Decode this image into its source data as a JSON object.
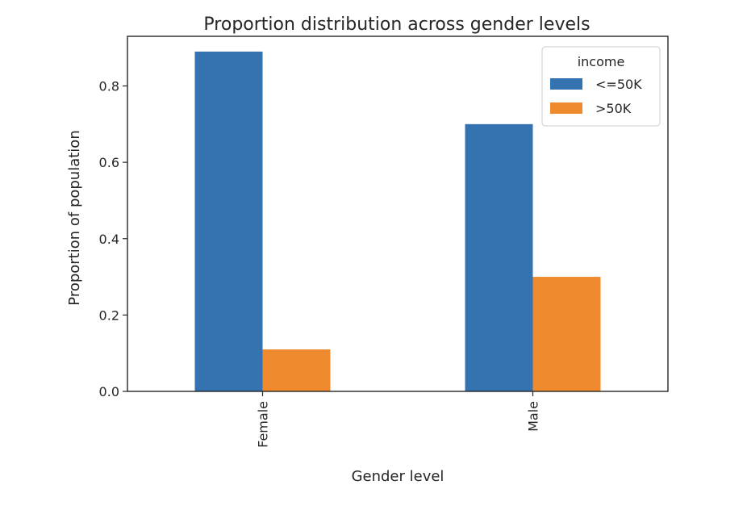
{
  "chart_data": {
    "type": "bar",
    "title": "Proportion distribution across gender levels",
    "xlabel": "Gender level",
    "ylabel": "Proportion of population",
    "categories": [
      "Female",
      "Male"
    ],
    "series": [
      {
        "name": "<=50K",
        "values": [
          0.89,
          0.7
        ],
        "color": "#3572b0"
      },
      {
        "name": ">50K",
        "values": [
          0.11,
          0.3
        ],
        "color": "#f08a2e"
      }
    ],
    "ylim": [
      0,
      0.93
    ],
    "yticks": [
      0.0,
      0.2,
      0.4,
      0.6,
      0.8
    ],
    "ytick_labels": [
      "0.0",
      "0.2",
      "0.4",
      "0.6",
      "0.8"
    ],
    "legend": {
      "title": "income",
      "placement": "top-right"
    },
    "grid": false
  }
}
